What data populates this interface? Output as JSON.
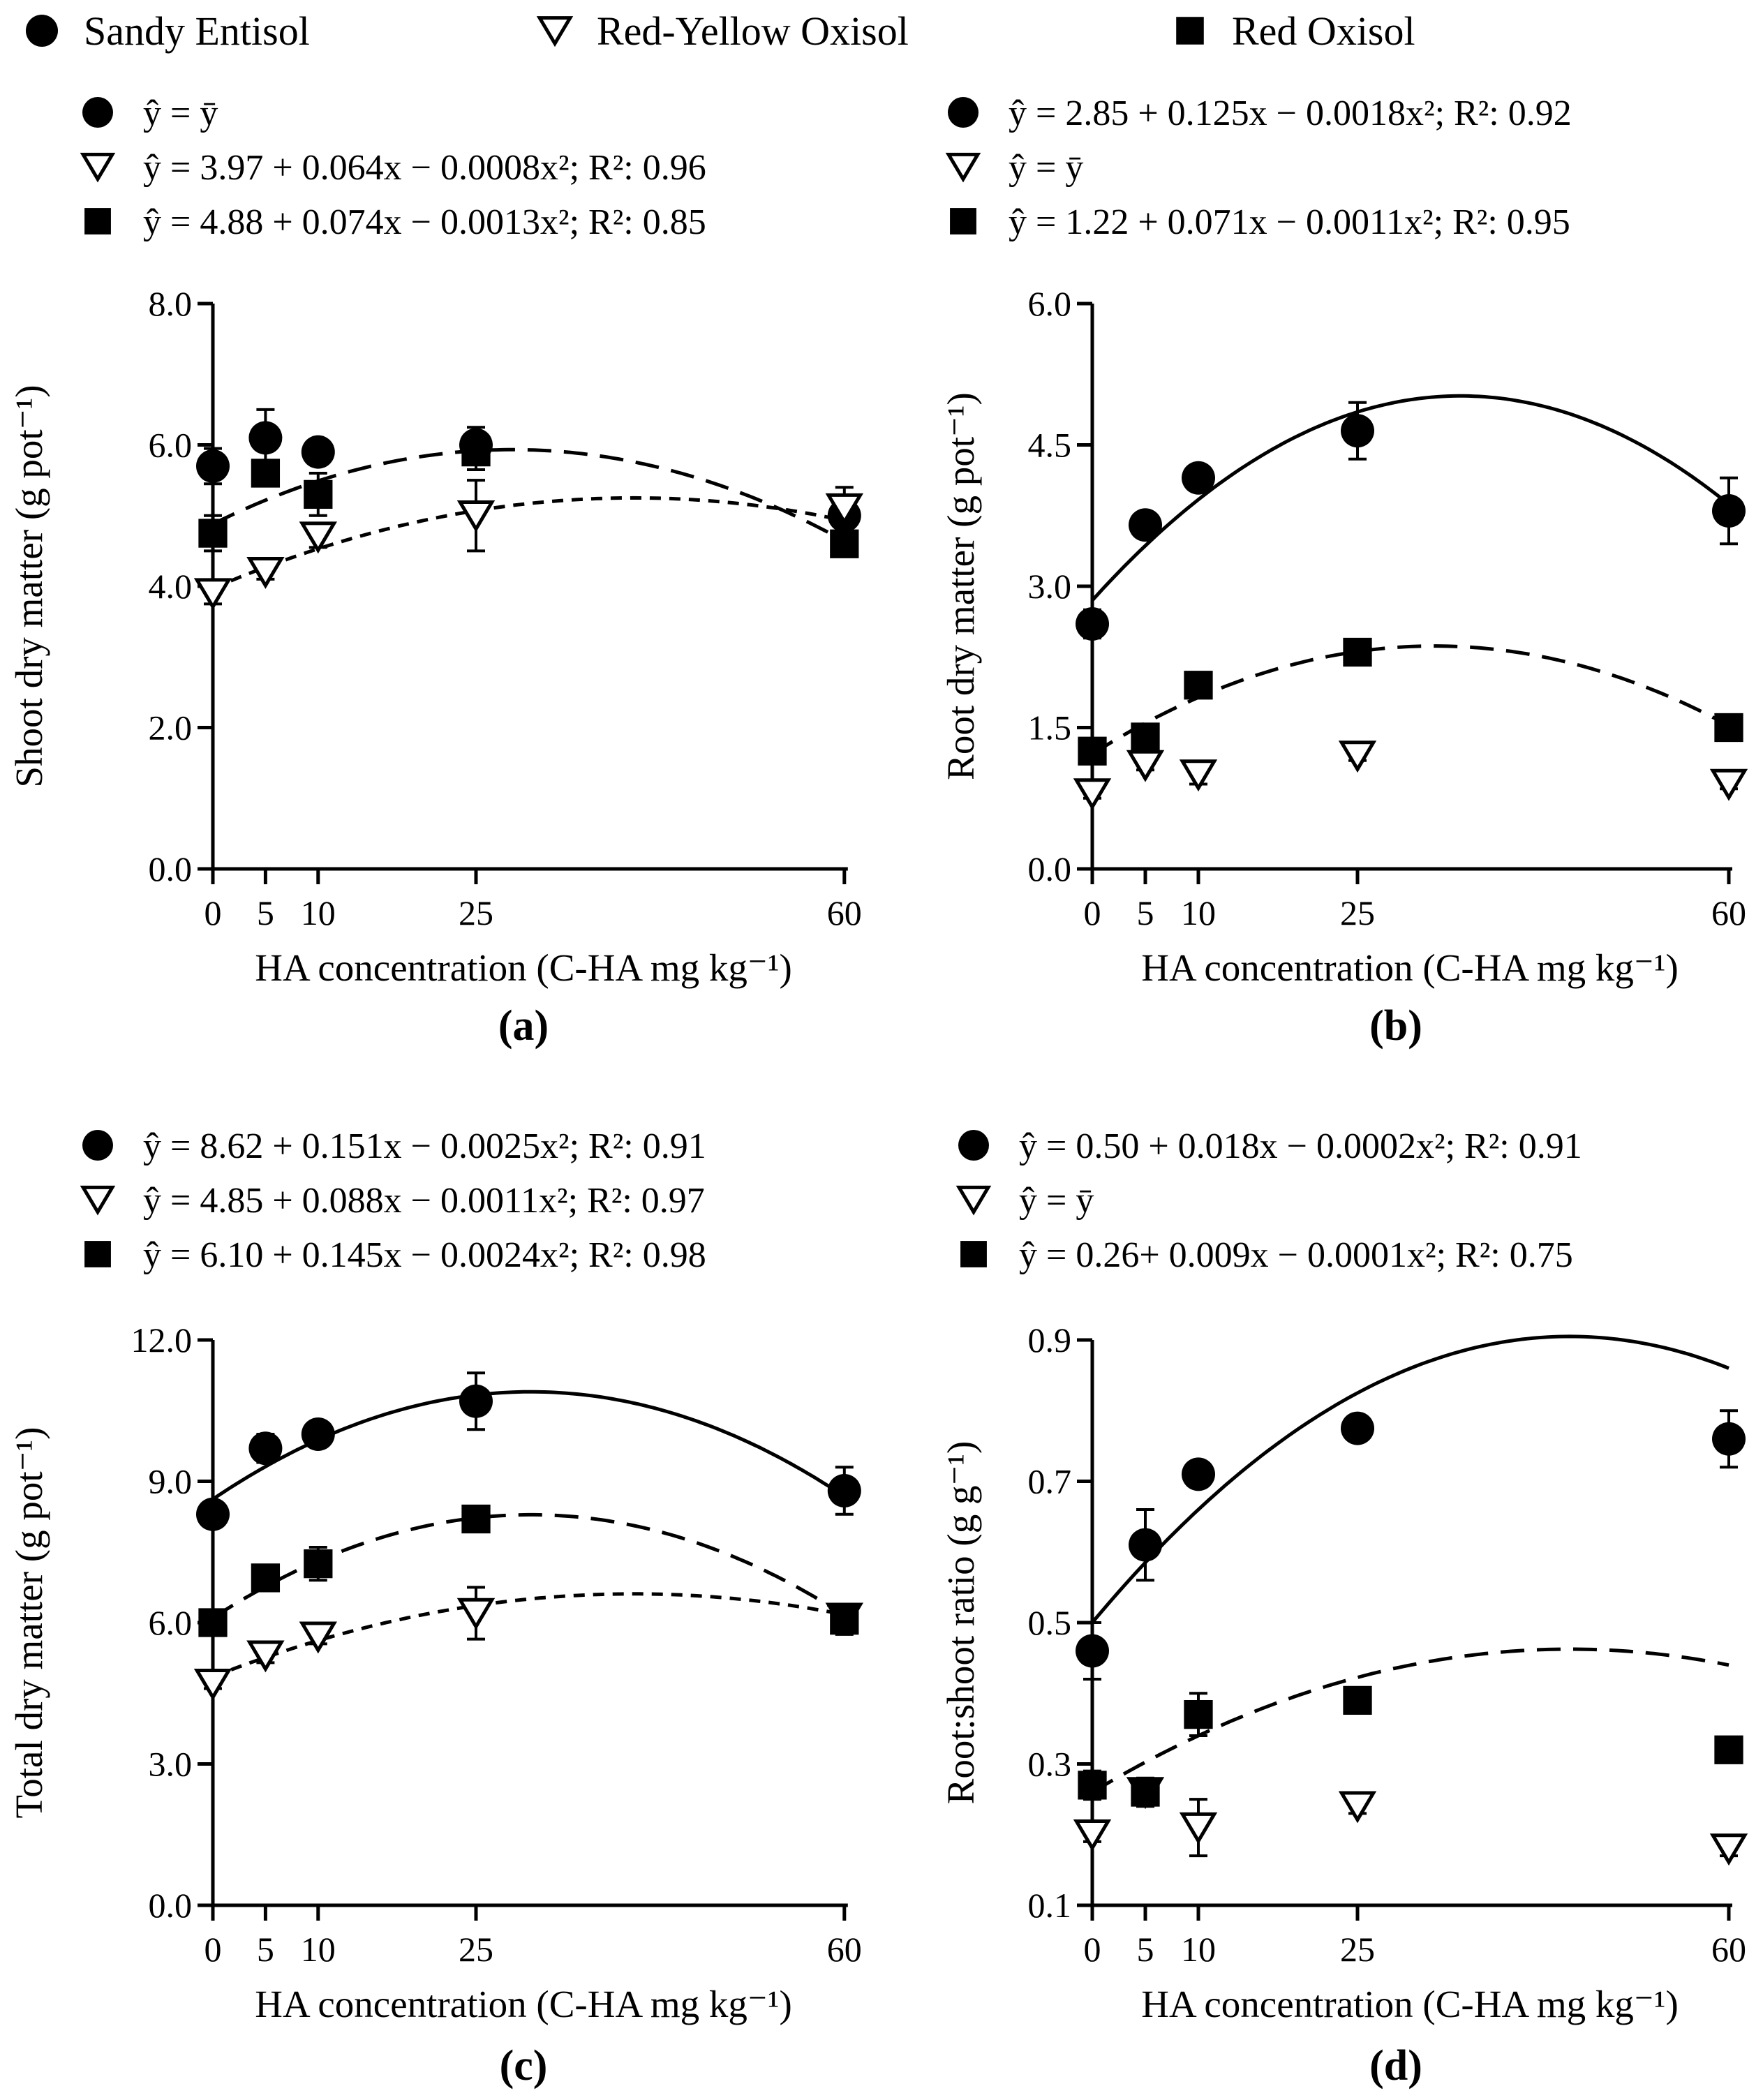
{
  "legend": [
    {
      "marker": "circle",
      "label": "Sandy Entisol"
    },
    {
      "marker": "triangle",
      "label": "Red-Yellow Oxisol"
    },
    {
      "marker": "square",
      "label": "Red Oxisol"
    }
  ],
  "chart_data": [
    {
      "panel": "(a)",
      "type": "scatter",
      "ylabel": "Shoot dry matter (g pot⁻¹)",
      "xlabel": "HA concentration  (C-HA mg kg⁻¹)",
      "xticks": [
        0,
        5,
        10,
        25,
        60
      ],
      "ylim": [
        0,
        8
      ],
      "yticks": [
        "0.0",
        "2.0",
        "4.0",
        "6.0",
        "8.0"
      ],
      "equations": [
        {
          "marker": "circle",
          "text": "ŷ = ȳ"
        },
        {
          "marker": "triangle",
          "text": "ŷ = 3.97 + 0.064x − 0.0008x²; R²: 0.96"
        },
        {
          "marker": "square",
          "text": "ŷ = 4.88 + 0.074x − 0.0013x²; R²: 0.85"
        }
      ],
      "series": [
        {
          "name": "Sandy Entisol",
          "marker": "circle",
          "x": [
            0,
            5,
            10,
            25,
            60
          ],
          "y": [
            5.7,
            6.1,
            5.9,
            6.0,
            5.0
          ],
          "err": [
            0.25,
            0.4,
            0.15,
            0.25,
            0.15
          ],
          "fit": null
        },
        {
          "name": "Red-Yellow Oxisol",
          "marker": "triangle",
          "x": [
            0,
            5,
            10,
            25,
            60
          ],
          "y": [
            3.9,
            4.2,
            4.7,
            5.0,
            5.1
          ],
          "err": [
            0.15,
            0.1,
            0.15,
            0.5,
            0.3
          ],
          "fit": {
            "a": 3.97,
            "b": 0.064,
            "c": -0.0008,
            "style": "dashed-short"
          }
        },
        {
          "name": "Red Oxisol",
          "marker": "square",
          "x": [
            0,
            5,
            10,
            25,
            60
          ],
          "y": [
            4.75,
            5.6,
            5.3,
            5.9,
            4.6
          ],
          "err": [
            0.25,
            0.15,
            0.3,
            0.25,
            0.1
          ],
          "fit": {
            "a": 4.88,
            "b": 0.074,
            "c": -0.0013,
            "style": "dashed-long"
          }
        }
      ]
    },
    {
      "panel": "(b)",
      "type": "scatter",
      "ylabel": "Root dry matter (g pot⁻¹)",
      "xlabel": "HA concentration  (C-HA mg kg⁻¹)",
      "xticks": [
        0,
        5,
        10,
        25,
        60
      ],
      "ylim": [
        0,
        6
      ],
      "yticks": [
        "0.0",
        "1.5",
        "3.0",
        "4.5",
        "6.0"
      ],
      "equations": [
        {
          "marker": "circle",
          "text": "ŷ = 2.85 + 0.125x − 0.0018x²; R²: 0.92"
        },
        {
          "marker": "triangle",
          "text": "ŷ = ȳ"
        },
        {
          "marker": "square",
          "text": "ŷ = 1.22 + 0.071x − 0.0011x²; R²: 0.95"
        }
      ],
      "series": [
        {
          "name": "Sandy Entisol",
          "marker": "circle",
          "x": [
            0,
            5,
            10,
            25,
            60
          ],
          "y": [
            2.6,
            3.65,
            4.15,
            4.65,
            3.8
          ],
          "err": [
            0.15,
            0.05,
            0.05,
            0.3,
            0.35
          ],
          "fit": {
            "a": 2.85,
            "b": 0.125,
            "c": -0.0018,
            "style": "solid"
          }
        },
        {
          "name": "Red-Yellow Oxisol",
          "marker": "triangle",
          "x": [
            0,
            5,
            10,
            25,
            60
          ],
          "y": [
            0.8,
            1.1,
            1.0,
            1.2,
            0.9
          ],
          "err": [
            0.05,
            0.05,
            0.1,
            0.05,
            0.05
          ],
          "fit": null
        },
        {
          "name": "Red Oxisol",
          "marker": "square",
          "x": [
            0,
            5,
            10,
            25,
            60
          ],
          "y": [
            1.25,
            1.4,
            1.95,
            2.3,
            1.5
          ],
          "err": [
            0.05,
            0.05,
            0.05,
            0.05,
            0.05
          ],
          "fit": {
            "a": 1.22,
            "b": 0.071,
            "c": -0.0011,
            "style": "dashed-long"
          }
        }
      ]
    },
    {
      "panel": "(c)",
      "type": "scatter",
      "ylabel": "Total dry matter (g pot⁻¹)",
      "xlabel": "HA concentration  (C-HA mg kg⁻¹)",
      "xticks": [
        0,
        5,
        10,
        25,
        60
      ],
      "ylim": [
        0,
        12
      ],
      "yticks": [
        "0.0",
        "3.0",
        "6.0",
        "9.0",
        "12.0"
      ],
      "equations": [
        {
          "marker": "circle",
          "text": "ŷ = 8.62 + 0.151x − 0.0025x²; R²: 0.91"
        },
        {
          "marker": "triangle",
          "text": "ŷ = 4.85 + 0.088x − 0.0011x²; R²: 0.97"
        },
        {
          "marker": "square",
          "text": "ŷ = 6.10 + 0.145x − 0.0024x²; R²: 0.98"
        }
      ],
      "series": [
        {
          "name": "Sandy Entisol",
          "marker": "circle",
          "x": [
            0,
            5,
            10,
            25,
            60
          ],
          "y": [
            8.3,
            9.7,
            10.0,
            10.7,
            8.8
          ],
          "err": [
            0.2,
            0.3,
            0.15,
            0.6,
            0.5
          ],
          "fit": {
            "a": 8.62,
            "b": 0.151,
            "c": -0.0025,
            "style": "solid"
          }
        },
        {
          "name": "Red-Yellow Oxisol",
          "marker": "triangle",
          "x": [
            0,
            5,
            10,
            25,
            60
          ],
          "y": [
            4.7,
            5.3,
            5.7,
            6.2,
            6.1
          ],
          "err": [
            0.1,
            0.15,
            0.15,
            0.55,
            0.2
          ],
          "fit": {
            "a": 4.85,
            "b": 0.088,
            "c": -0.0011,
            "style": "dashed-short"
          }
        },
        {
          "name": "Red Oxisol",
          "marker": "square",
          "x": [
            0,
            5,
            10,
            25,
            60
          ],
          "y": [
            6.0,
            6.95,
            7.25,
            8.2,
            6.05
          ],
          "err": [
            0.15,
            0.2,
            0.35,
            0.15,
            0.3
          ],
          "fit": {
            "a": 6.1,
            "b": 0.145,
            "c": -0.0024,
            "style": "dashed-long"
          }
        }
      ]
    },
    {
      "panel": "(d)",
      "type": "scatter",
      "ylabel": "Root:shoot ratio (g g⁻¹)",
      "xlabel": "HA concentration  (C-HA mg kg⁻¹)",
      "xticks": [
        0,
        5,
        10,
        25,
        60
      ],
      "ylim": [
        0.1,
        0.9
      ],
      "yticks": [
        "0.1",
        "0.3",
        "0.5",
        "0.7",
        "0.9"
      ],
      "equations": [
        {
          "marker": "circle",
          "text": "ŷ = 0.50 + 0.018x − 0.0002x²; R²: 0.91"
        },
        {
          "marker": "triangle",
          "text": "ŷ = ȳ"
        },
        {
          "marker": "square",
          "text": "ŷ = 0.26+ 0.009x − 0.0001x²; R²: 0.75"
        }
      ],
      "series": [
        {
          "name": "Sandy Entisol",
          "marker": "circle",
          "x": [
            0,
            5,
            10,
            25,
            60
          ],
          "y": [
            0.46,
            0.61,
            0.71,
            0.775,
            0.76
          ],
          "err": [
            0.04,
            0.05,
            0.01,
            0.01,
            0.04
          ],
          "fit": {
            "a": 0.5,
            "b": 0.018,
            "c": -0.0002,
            "style": "solid"
          }
        },
        {
          "name": "Red-Yellow Oxisol",
          "marker": "triangle",
          "x": [
            0,
            5,
            10,
            25,
            60
          ],
          "y": [
            0.2,
            0.26,
            0.21,
            0.24,
            0.18
          ],
          "err": [
            0.01,
            0.01,
            0.04,
            0.01,
            0.01
          ],
          "fit": null
        },
        {
          "name": "Red Oxisol",
          "marker": "square",
          "x": [
            0,
            5,
            10,
            25,
            60
          ],
          "y": [
            0.27,
            0.26,
            0.37,
            0.39,
            0.32
          ],
          "err": [
            0.02,
            0.02,
            0.03,
            0.01,
            0.01
          ],
          "fit": {
            "a": 0.26,
            "b": 0.009,
            "c": -0.0001,
            "style": "dashed-long"
          }
        }
      ]
    }
  ]
}
